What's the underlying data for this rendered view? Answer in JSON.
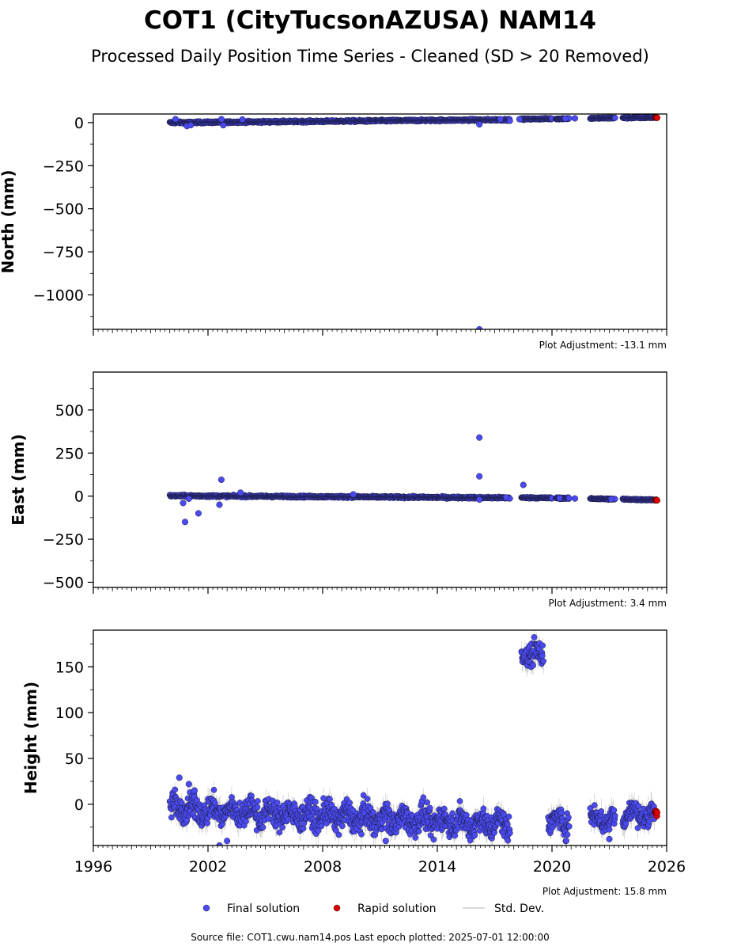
{
  "chart_data": {
    "type": "scatter",
    "title": "COT1 (CityTucsonAZUSA) NAM14",
    "subtitle": "Processed Daily Position Time Series - Cleaned (SD > 20 Removed)",
    "xlim": [
      1996,
      2026
    ],
    "x_ticks": [
      1996,
      2002,
      2008,
      2014,
      2020,
      2026
    ],
    "x_tick_labels": [
      "1996",
      "2002",
      "2008",
      "2014",
      "2020",
      "2026"
    ],
    "legend": {
      "position": "bottom-center",
      "entries": [
        {
          "name": "Final solution",
          "color": "#4a4af0"
        },
        {
          "name": "Rapid solution",
          "color": "#e00000"
        },
        {
          "name": "Std. Dev.",
          "color": "#cccccc"
        }
      ]
    },
    "footer": "Source file: COT1.cwu.nam14.pos  Last epoch plotted: 2025-07-01 12:00:00",
    "panels": [
      {
        "ylabel": "North (mm)",
        "ylim": [
          -1200,
          50
        ],
        "yticks": [
          0,
          -250,
          -500,
          -750,
          -1000
        ],
        "ytick_labels": [
          "0",
          "−250",
          "−500",
          "−750",
          "−1000"
        ],
        "adjustment": "Plot Adjustment: -13.1 mm",
        "segments": [
          {
            "start": 2000.0,
            "end": 2017.8,
            "v0": 0,
            "v1": 17,
            "scatter": 4
          },
          {
            "start": 2018.4,
            "end": 2020.0,
            "v0": 20,
            "v1": 23,
            "scatter": 3
          },
          {
            "start": 2020.2,
            "end": 2020.9,
            "v0": 22,
            "v1": 24,
            "scatter": 3
          },
          {
            "start": 2022.0,
            "end": 2023.3,
            "v0": 25,
            "v1": 27,
            "scatter": 3
          },
          {
            "start": 2023.7,
            "end": 2025.35,
            "v0": 27,
            "v1": 30,
            "scatter": 3
          }
        ],
        "outliers": [
          {
            "x": 2000.3,
            "y": 20
          },
          {
            "x": 2000.9,
            "y": -20
          },
          {
            "x": 2001.1,
            "y": -15
          },
          {
            "x": 2002.7,
            "y": 20
          },
          {
            "x": 2002.8,
            "y": -15
          },
          {
            "x": 2003.8,
            "y": 18
          },
          {
            "x": 2016.2,
            "y": -10
          },
          {
            "x": 2016.2,
            "y": -1200
          },
          {
            "x": 2017.3,
            "y": 20
          },
          {
            "x": 2018.3,
            "y": 20
          },
          {
            "x": 2020.7,
            "y": 23
          },
          {
            "x": 2021.2,
            "y": 25
          }
        ],
        "rapid": {
          "start": 2025.4,
          "end": 2025.5,
          "v": 30
        }
      },
      {
        "ylabel": "East (mm)",
        "ylim": [
          -530,
          720
        ],
        "yticks": [
          500,
          250,
          0,
          -250,
          -500
        ],
        "ytick_labels": [
          "500",
          "250",
          "0",
          "−250",
          "−500"
        ],
        "adjustment": "Plot Adjustment: 3.4 mm",
        "segments": [
          {
            "start": 2000.0,
            "end": 2017.8,
            "v0": 2,
            "v1": -10,
            "scatter": 4
          },
          {
            "start": 2018.4,
            "end": 2020.0,
            "v0": -9,
            "v1": -11,
            "scatter": 3
          },
          {
            "start": 2020.2,
            "end": 2020.9,
            "v0": -11,
            "v1": -13,
            "scatter": 3
          },
          {
            "start": 2022.0,
            "end": 2023.3,
            "v0": -14,
            "v1": -18,
            "scatter": 3
          },
          {
            "start": 2023.7,
            "end": 2025.35,
            "v0": -18,
            "v1": -22,
            "scatter": 3
          }
        ],
        "outliers": [
          {
            "x": 2000.7,
            "y": -40
          },
          {
            "x": 2000.8,
            "y": -150
          },
          {
            "x": 2001.5,
            "y": -100
          },
          {
            "x": 2001.0,
            "y": -15
          },
          {
            "x": 2002.6,
            "y": -50
          },
          {
            "x": 2002.7,
            "y": 95
          },
          {
            "x": 2003.7,
            "y": 20
          },
          {
            "x": 2009.6,
            "y": 10
          },
          {
            "x": 2016.2,
            "y": 340
          },
          {
            "x": 2016.2,
            "y": 115
          },
          {
            "x": 2016.2,
            "y": -20
          },
          {
            "x": 2017.6,
            "y": -8
          },
          {
            "x": 2018.5,
            "y": 65
          },
          {
            "x": 2020.4,
            "y": -12
          },
          {
            "x": 2021.2,
            "y": -14
          },
          {
            "x": 2023.1,
            "y": -18
          }
        ],
        "rapid": {
          "start": 2025.4,
          "end": 2025.5,
          "v": -22
        }
      },
      {
        "ylabel": "Height (mm)",
        "ylim": [
          -45,
          190
        ],
        "yticks": [
          150,
          100,
          50,
          0
        ],
        "ytick_labels": [
          "150",
          "100",
          "50",
          "0"
        ],
        "adjustment": "Plot Adjustment: 15.8 mm",
        "segments": [
          {
            "start": 2000.0,
            "end": 2017.8,
            "v0": -5,
            "v1": -22,
            "scatter": 10
          },
          {
            "start": 2018.4,
            "end": 2019.55,
            "v0": 165,
            "v1": 165,
            "scatter": 10
          },
          {
            "start": 2019.8,
            "end": 2020.9,
            "v0": -20,
            "v1": -18,
            "scatter": 9
          },
          {
            "start": 2022.0,
            "end": 2023.3,
            "v0": -15,
            "v1": -17,
            "scatter": 9
          },
          {
            "start": 2023.7,
            "end": 2025.35,
            "v0": -10,
            "v1": -12,
            "scatter": 8
          }
        ],
        "outliers": [
          {
            "x": 2000.5,
            "y": 29
          },
          {
            "x": 2001.0,
            "y": 22
          },
          {
            "x": 2001.3,
            "y": 15
          },
          {
            "x": 2003.0,
            "y": -40
          },
          {
            "x": 2002.6,
            "y": -45
          },
          {
            "x": 2011.3,
            "y": -40
          },
          {
            "x": 2023.0,
            "y": -38
          }
        ],
        "rapid": {
          "start": 2025.4,
          "end": 2025.5,
          "v": -8
        }
      }
    ]
  }
}
